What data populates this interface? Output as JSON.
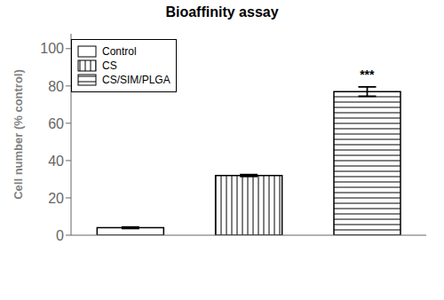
{
  "chart_data": {
    "type": "bar",
    "title": "Bioaffinity assay",
    "ylabel": "Cell number (% control)",
    "categories": [
      "Control",
      "CS",
      "CS/SIM/PLGA"
    ],
    "values": [
      4.0,
      32.0,
      77.0
    ],
    "errors": [
      0.4,
      0.5,
      2.5
    ],
    "colors": [
      "#ffffff",
      "#ffffff",
      "#ffffff"
    ],
    "ylim": [
      0,
      108
    ],
    "yticks": [
      0,
      20,
      40,
      60,
      80,
      100
    ],
    "annotations": [
      {
        "text": "***",
        "category": "CS/SIM/PLGA"
      }
    ],
    "legend": "upper left",
    "grid": false,
    "tick_labels": "y"
  }
}
